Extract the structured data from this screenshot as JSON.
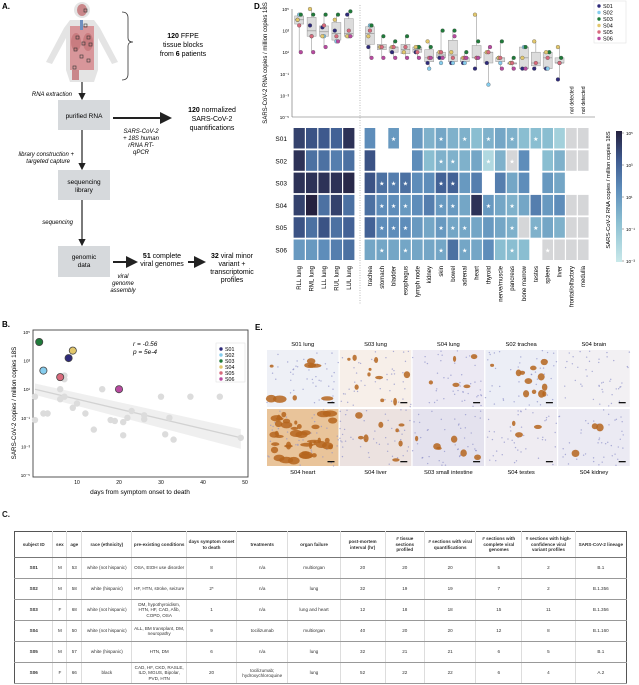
{
  "panels": {
    "a": "A.",
    "b": "B.",
    "c": "C.",
    "d": "D.",
    "e": "E."
  },
  "colors": {
    "subjects": {
      "S01": "#2e2a7a",
      "S02": "#86cdee",
      "S03": "#1f7a3a",
      "S04": "#e2c76c",
      "S05": "#d86a7c",
      "S06": "#b84aa0"
    },
    "not_detected": "#d5d6d8",
    "scale": [
      "#c9e9ea",
      "#8cc0d2",
      "#5f8fbc",
      "#3f5b90",
      "#25213f"
    ]
  },
  "panel_a": {
    "blocks": {
      "n": "120",
      "t1": " FFPE",
      "t2": "tissue blocks",
      "t3": "from ",
      "m": "6",
      "t4": " patients"
    },
    "rna_extraction": "RNA extraction",
    "box_rna": "purified RNA",
    "quant": {
      "n": "120",
      "t1": " normalized",
      "t2": "SARS-CoV-2",
      "t3": "quantifications"
    },
    "rtqpcr": [
      "SARS-CoV-2",
      "+ 18S human",
      "rRNA RT-",
      "qPCR"
    ],
    "library": [
      "library construction +",
      "targeted capture"
    ],
    "box_lib": [
      "sequencing",
      "library"
    ],
    "sequencing": "sequencing",
    "box_gen": [
      "genomic",
      "data"
    ],
    "assembly": [
      "viral",
      "genome",
      "assembly"
    ],
    "genomes": {
      "n": "51",
      "t1": " complete",
      "t2": "viral genomes"
    },
    "profiles": {
      "n": "32",
      "t1": " viral minor",
      "t2": "variant +",
      "t3": "transcriptomic",
      "t4": "profiles"
    }
  },
  "chart_data": [
    {
      "type": "heatmap",
      "ylabel": "SARS-CoV-2 RNA copies / million copies 18S",
      "colorbar_label": "SARS-CoV-2 RNA copies / million copies 18S",
      "scale": "log",
      "colorbar_range": [
        0.001,
        100000
      ],
      "colorbar_ticks": [
        "10⁵",
        "10³",
        "10¹",
        "10⁻¹",
        "10⁻³"
      ],
      "boxplot_ticks": [
        "10⁵",
        "10³",
        "10¹",
        "10⁻¹",
        "10⁻³",
        "10⁻⁵"
      ],
      "boxplot_range": [
        1e-05,
        100000
      ],
      "not_detected_label": "not detected",
      "rows": [
        "S01",
        "S02",
        "S03",
        "S04",
        "S05",
        "S06"
      ],
      "lung_columns": [
        "RLL lung",
        "RML lung",
        "LLL lung",
        "RUL lung",
        "LUL lung"
      ],
      "tissue_columns": [
        "trachea",
        "stomach",
        "bladder",
        "esophagus",
        "lymph node",
        "kidney",
        "skin",
        "bowel",
        "adrenal",
        "heart",
        "thyroid",
        "nerve/muscle",
        "pancreas",
        "bone marrow",
        "testes",
        "spleen",
        "liver",
        "frontal/olfactory",
        "medulla"
      ],
      "values": [
        [
          10000,
          3000,
          2000,
          1000,
          30000,
          30,
          null,
          10,
          null,
          10,
          1,
          3,
          1,
          1,
          0.3,
          1,
          3,
          1,
          0.3,
          0.3,
          0.3,
          0.03,
          "nd",
          "nd"
        ],
        [
          30000,
          300,
          300,
          100,
          300,
          3000,
          null,
          null,
          null,
          30,
          0.3,
          1,
          1,
          1,
          3,
          0.01,
          1,
          "nd",
          30,
          null,
          0.3,
          1,
          "nd",
          "nd"
        ],
        [
          30000,
          30000,
          30000,
          30000,
          60000,
          3000,
          300,
          100,
          300,
          30,
          30,
          1000,
          1000,
          10,
          100,
          null,
          100,
          3,
          30,
          null,
          10,
          3,
          null,
          null
        ],
        [
          10000,
          100000,
          300,
          10000,
          300,
          300,
          30,
          30,
          10,
          30,
          100,
          10,
          10,
          3,
          30000,
          10,
          3,
          1,
          3,
          100,
          10,
          30,
          "nd",
          "nd"
        ],
        [
          3000,
          300,
          3000,
          300,
          1000,
          1000,
          30,
          30,
          30,
          10,
          3,
          10,
          3,
          3,
          3,
          10,
          3,
          1,
          "nd",
          1,
          3,
          1,
          "nd",
          "nd"
        ],
        [
          10,
          10,
          30,
          100,
          300,
          3,
          3,
          3,
          3,
          3,
          3,
          3,
          300,
          3,
          3,
          30,
          0.3,
          0.3,
          0.3,
          null,
          "nd",
          "nd",
          "nd",
          "nd"
        ]
      ],
      "significant": [
        [
          0,
          0,
          0,
          0,
          0,
          0,
          0,
          1,
          0,
          0,
          0,
          1,
          0,
          1,
          0,
          1,
          0,
          1,
          0,
          1,
          0,
          0,
          0,
          0
        ],
        [
          0,
          0,
          0,
          0,
          0,
          0,
          0,
          0,
          0,
          0,
          0,
          1,
          1,
          0,
          0,
          1,
          0,
          1,
          0,
          0,
          0,
          0,
          0,
          0
        ],
        [
          0,
          0,
          0,
          0,
          0,
          0,
          1,
          1,
          1,
          0,
          0,
          1,
          1,
          0,
          0,
          0,
          0,
          0,
          0,
          0,
          0,
          0,
          0,
          0
        ],
        [
          0,
          0,
          0,
          0,
          0,
          0,
          1,
          1,
          1,
          0,
          0,
          1,
          1,
          0,
          0,
          1,
          0,
          1,
          0,
          0,
          0,
          0,
          0,
          0
        ],
        [
          0,
          0,
          0,
          0,
          0,
          0,
          1,
          1,
          1,
          0,
          0,
          1,
          1,
          1,
          0,
          0,
          0,
          1,
          0,
          1,
          0,
          0,
          0,
          0
        ],
        [
          0,
          0,
          0,
          0,
          0,
          0,
          1,
          0,
          1,
          0,
          0,
          1,
          0,
          1,
          0,
          0,
          0,
          1,
          0,
          0,
          1,
          0,
          0,
          0
        ]
      ],
      "legend": [
        "S01",
        "S02",
        "S03",
        "S04",
        "S05",
        "S06"
      ],
      "legend_position": "top-right"
    },
    {
      "type": "scatter",
      "xlabel": "days from symptom onset to death",
      "ylabel": "SARS-CoV-2 copies / million copies 18S",
      "xlim": [
        0,
        50
      ],
      "x_ticks": [
        "10",
        "20",
        "30",
        "40",
        "50"
      ],
      "x_tick_values": [
        10,
        20,
        30,
        40,
        50
      ],
      "ylim": [
        1e-05,
        100000
      ],
      "y_scale": "log",
      "y_ticks": [
        "10⁵",
        "10³",
        "10¹",
        "10⁻¹",
        "10⁻³",
        "10⁻⁵"
      ],
      "annotation": [
        "r = -0.56",
        "p = 5e-4"
      ],
      "legend": [
        "S01",
        "S02",
        "S03",
        "S04",
        "S05",
        "S06"
      ],
      "legend_position": "top-right",
      "highlighted": [
        {
          "subject": "S01",
          "x": 8,
          "y": 1500
        },
        {
          "subject": "S02",
          "x": 2,
          "y": 200
        },
        {
          "subject": "S03",
          "x": 1,
          "y": 20000
        },
        {
          "subject": "S04",
          "x": 9,
          "y": 5000
        },
        {
          "subject": "S05",
          "x": 6,
          "y": 70
        },
        {
          "subject": "S06",
          "x": 20,
          "y": 10
        }
      ],
      "other_points": [
        [
          0,
          3
        ],
        [
          0,
          0.07
        ],
        [
          2,
          0.2
        ],
        [
          3,
          0.2
        ],
        [
          6,
          10
        ],
        [
          6,
          2
        ],
        [
          7,
          3
        ],
        [
          7,
          90
        ],
        [
          7,
          50
        ],
        [
          9,
          0.5
        ],
        [
          10,
          1
        ],
        [
          12,
          0.2
        ],
        [
          14,
          0.015
        ],
        [
          16,
          10
        ],
        [
          18,
          0.07
        ],
        [
          19,
          0.06
        ],
        [
          21,
          0.05
        ],
        [
          21,
          0.006
        ],
        [
          22,
          0.1
        ],
        [
          23,
          0.3
        ],
        [
          26,
          0.15
        ],
        [
          26,
          0.08
        ],
        [
          30,
          3
        ],
        [
          31,
          0.007
        ],
        [
          32,
          0.1
        ],
        [
          33,
          0.003
        ],
        [
          37,
          3
        ],
        [
          44,
          3
        ],
        [
          49,
          0.004
        ]
      ],
      "fit": {
        "x": [
          0,
          49
        ],
        "y": [
          10,
          0.004
        ]
      }
    }
  ],
  "panel_e": {
    "top": [
      "S01 lung",
      "S03 lung",
      "S04 lung",
      "S02 trachea",
      "S04 brain"
    ],
    "bottom": [
      "S04 heart",
      "S04 liver",
      "S03 small intestine",
      "S04 testes",
      "S04 kidney"
    ]
  },
  "table": {
    "headers": [
      "subject ID",
      "sex",
      "age",
      "race (ethnicity)",
      "pre-existing conditions",
      "days symptom onset to death",
      "treatments",
      "organ failure",
      "post-mortem interval (hr)",
      "# tissue sections profiled",
      "# sections with viral quantifications",
      "# sections with complete viral genomes",
      "# sections with high-confidence viral variant profiles",
      "SARS-CoV-2 lineage"
    ],
    "rows": [
      [
        "S01",
        "M",
        "53",
        "white (not hispanic)",
        "OSA, EtOH use disorder",
        "8",
        "n/a",
        "multiorgan",
        "20",
        "20",
        "20",
        "5",
        "2",
        "B.1"
      ],
      [
        "S02",
        "M",
        "58",
        "white (hispanic)",
        "HF, HTN, stroke, seizure",
        "2*",
        "n/a",
        "lung",
        "32",
        "19",
        "19",
        "7",
        "2",
        "B.1.356"
      ],
      [
        "S03",
        "F",
        "68",
        "white (not hispanic)",
        "DM, hypothyroidism, HTN, HF, CAD, Afib, COPD, OSA",
        "1",
        "n/a",
        "lung and heart",
        "12",
        "18",
        "18",
        "15",
        "11",
        "B.1.356"
      ],
      [
        "S04",
        "M",
        "50",
        "white (not hispanic)",
        "ALL, BM transplant, DM, neuropathy",
        "9",
        "tocilizumab",
        "multiorgan",
        "40",
        "20",
        "20",
        "12",
        "8",
        "B.1.160"
      ],
      [
        "S05",
        "M",
        "57",
        "white (hispanic)",
        "HTN, DM",
        "6",
        "n/a",
        "lung",
        "32",
        "21",
        "21",
        "6",
        "5",
        "B.1"
      ],
      [
        "S06",
        "F",
        "66",
        "black",
        "CAD, HF, CKD, RASLE, ILD, MGUS, Bipolar, PVD, HTN",
        "20",
        "tocilizumab; hydroxychloroquine",
        "lung",
        "52",
        "22",
        "22",
        "6",
        "4",
        "A.2"
      ]
    ]
  }
}
